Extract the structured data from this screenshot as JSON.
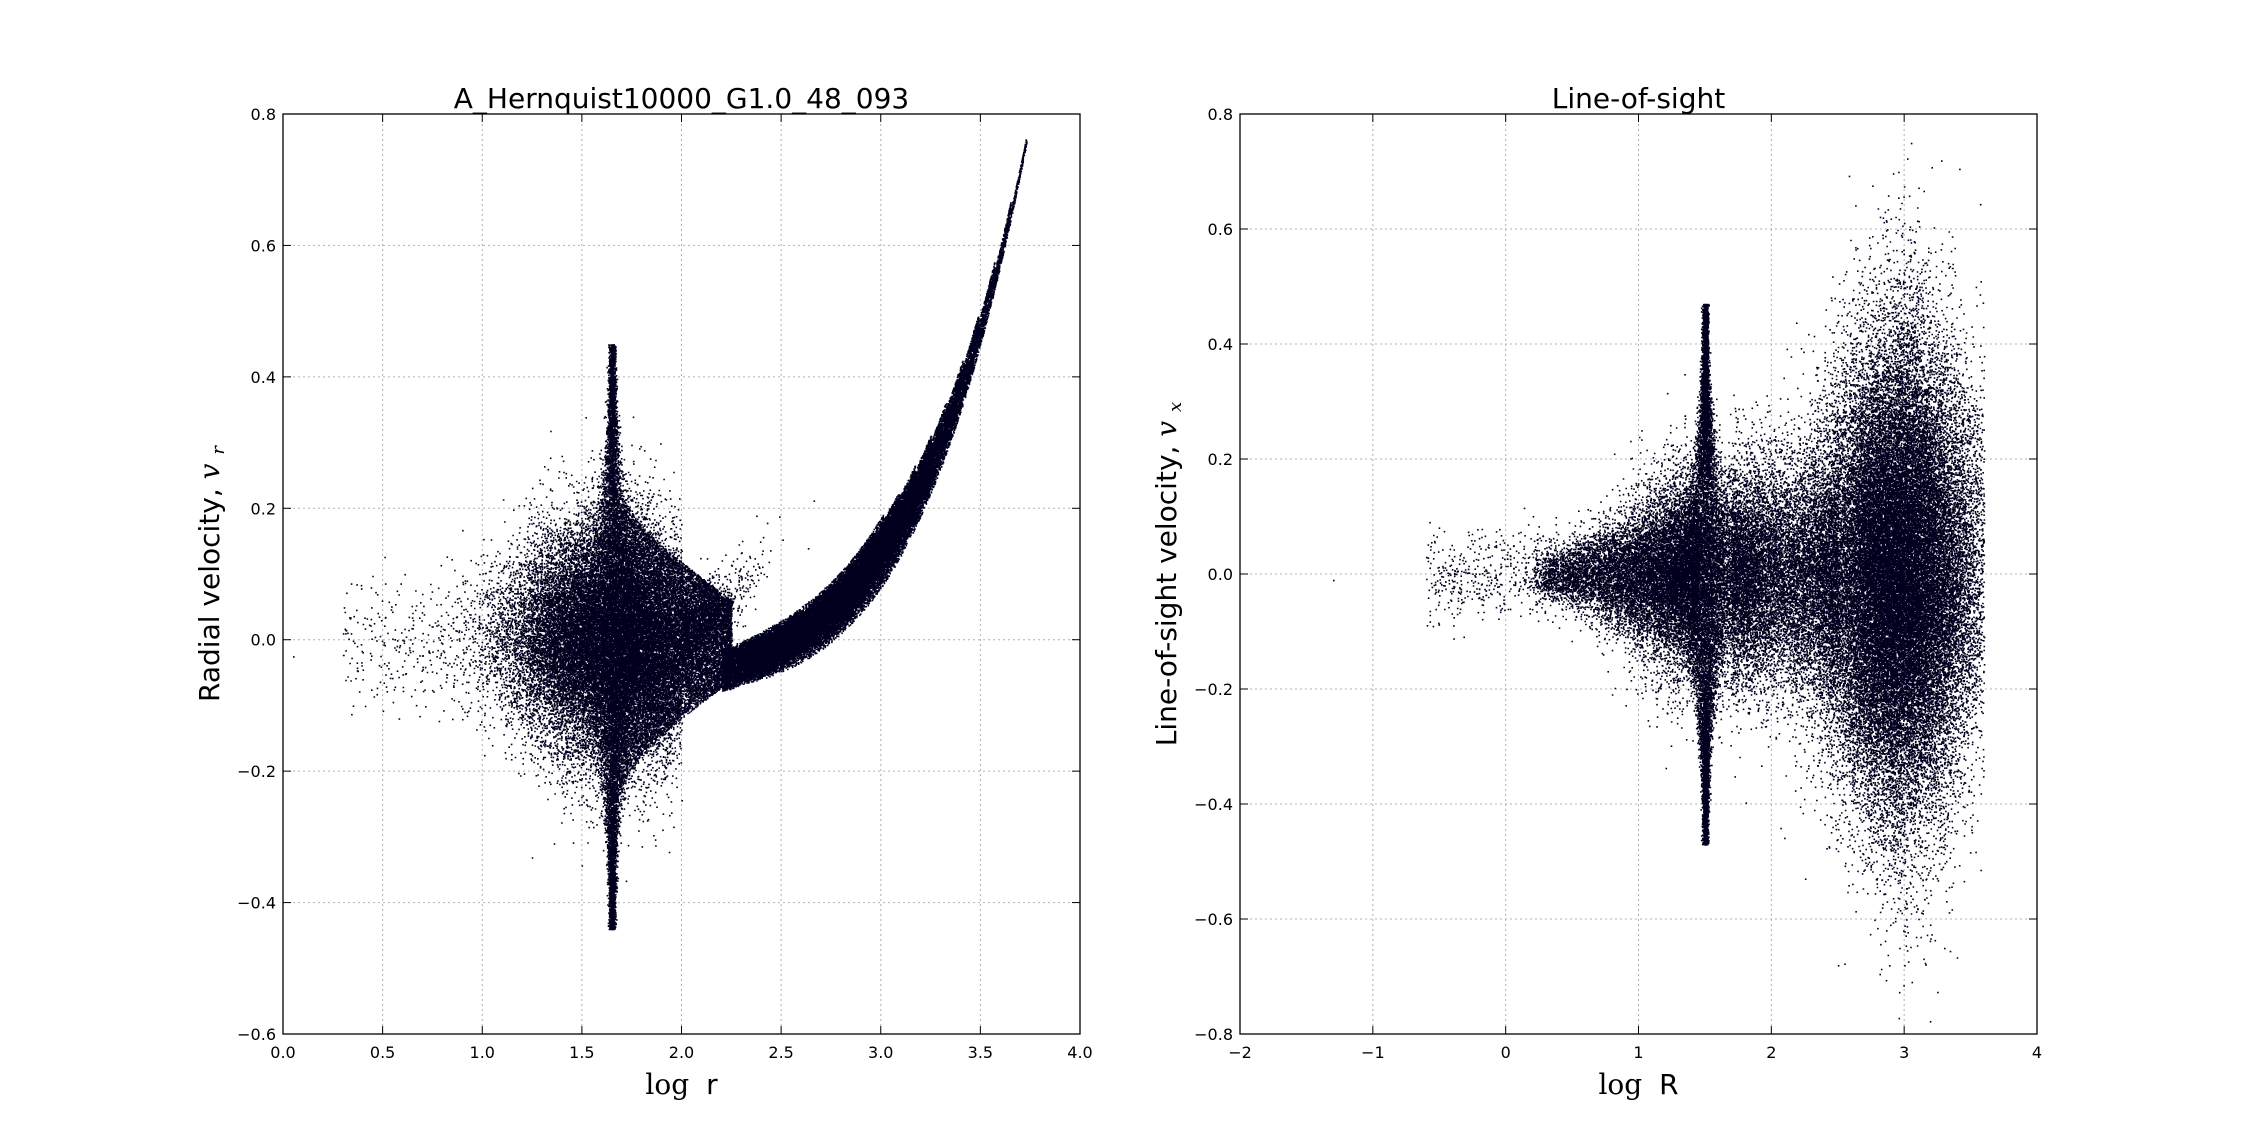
{
  "chart_data": [
    {
      "type": "scatter",
      "title": "A_Hernquist10000_G1.0_48_093",
      "xlabel_prefix": "log",
      "xlabel_var": "r",
      "ylabel_text": "Radial velocity, ",
      "ylabel_var": "v",
      "ylabel_sub": "r",
      "xlim": [
        0.0,
        4.0
      ],
      "ylim": [
        -0.6,
        0.8
      ],
      "xticks": [
        "0.0",
        "0.5",
        "1.0",
        "1.5",
        "2.0",
        "2.5",
        "3.0",
        "3.5",
        "4.0"
      ],
      "yticks": [
        "−0.6",
        "−0.4",
        "−0.2",
        "0.0",
        "0.2",
        "0.4",
        "0.6",
        "0.8"
      ],
      "grid": true,
      "marker_color": "#00001e",
      "features": {
        "core_center": [
          1.65,
          -0.01
        ],
        "spike_up": [
          1.65,
          0.45
        ],
        "spike_down": [
          1.65,
          -0.44
        ],
        "fan_tip": [
          3.73,
          0.77
        ],
        "leftmost_point": [
          0.05,
          -0.025
        ]
      }
    },
    {
      "type": "scatter",
      "title": "Line-of-sight",
      "xlabel_prefix": "log",
      "xlabel_var": "R",
      "ylabel_text": "Line-of-sight velocity, ",
      "ylabel_var": "v",
      "ylabel_sub": "x",
      "xlim": [
        -2,
        4
      ],
      "ylim": [
        -0.8,
        0.8
      ],
      "xticks": [
        "−2",
        "−1",
        "0",
        "1",
        "2",
        "3",
        "4"
      ],
      "yticks": [
        "−0.8",
        "−0.6",
        "−0.4",
        "−0.2",
        "0.0",
        "0.2",
        "0.4",
        "0.6",
        "0.8"
      ],
      "grid": true,
      "marker_color": "#00001e",
      "features": {
        "spike_center": [
          1.5,
          0.0
        ],
        "spike_up": [
          1.5,
          0.47
        ],
        "spike_down": [
          1.5,
          -0.47
        ],
        "blob_center": [
          2.95,
          0.0
        ],
        "blob_max": [
          3.05,
          0.75
        ],
        "blob_min": [
          3.0,
          -0.68
        ]
      }
    }
  ]
}
